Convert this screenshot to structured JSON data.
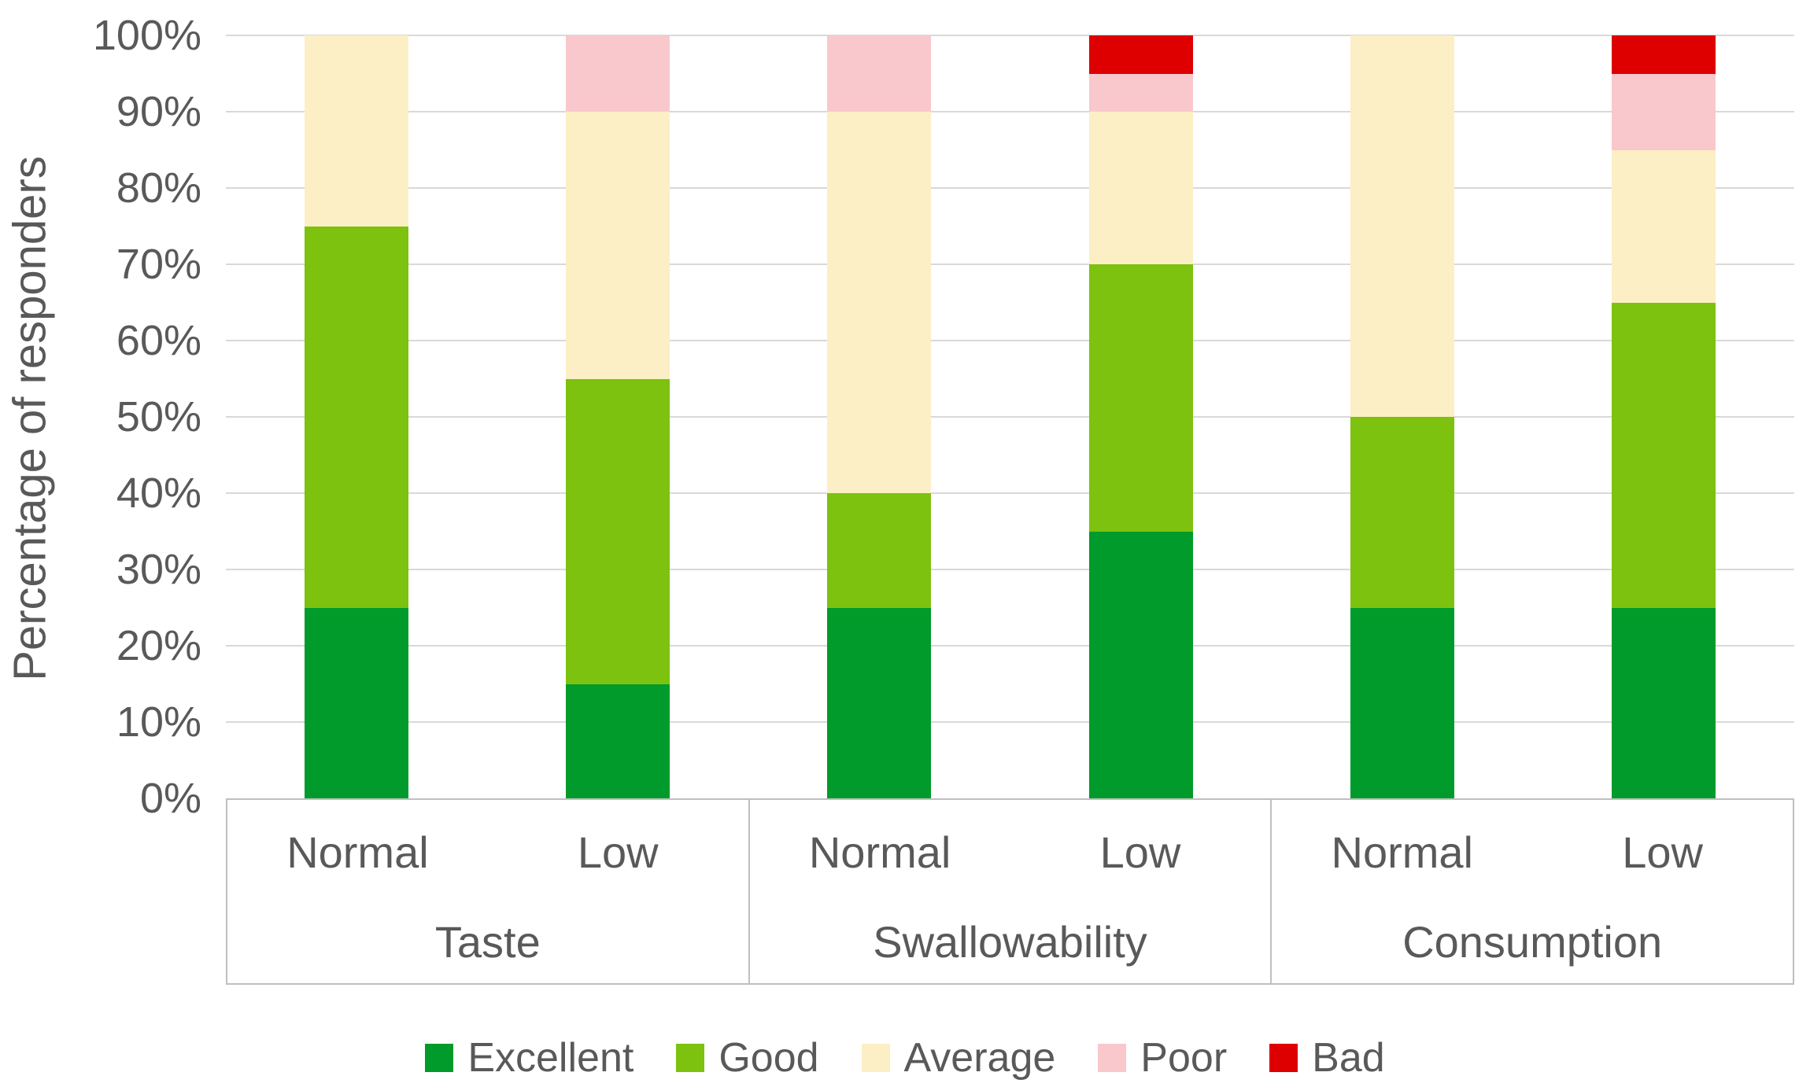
{
  "chart_data": {
    "type": "bar",
    "stacked": true,
    "percent_stacked": true,
    "title": "",
    "xlabel": "",
    "ylabel": "Percentage of responders",
    "ylim": [
      0,
      100
    ],
    "ytick_step": 10,
    "yticks": [
      "0%",
      "10%",
      "20%",
      "30%",
      "40%",
      "50%",
      "60%",
      "70%",
      "80%",
      "90%",
      "100%"
    ],
    "grid": "horizontal",
    "legend_position": "bottom",
    "groups": [
      "Taste",
      "Swallowability",
      "Consumption"
    ],
    "categories": [
      "Normal",
      "Low",
      "Normal",
      "Low",
      "Normal",
      "Low"
    ],
    "series": [
      {
        "name": "Excellent",
        "color": "#009B2A",
        "values": [
          25,
          15,
          25,
          35,
          25,
          25
        ]
      },
      {
        "name": "Good",
        "color": "#7CC20F",
        "values": [
          50,
          40,
          15,
          35,
          25,
          40
        ]
      },
      {
        "name": "Average",
        "color": "#FCEFC5",
        "values": [
          25,
          35,
          50,
          20,
          50,
          20
        ]
      },
      {
        "name": "Poor",
        "color": "#F9C8CC",
        "values": [
          0,
          10,
          10,
          5,
          0,
          10
        ]
      },
      {
        "name": "Bad",
        "color": "#DE0000",
        "values": [
          0,
          0,
          0,
          5,
          0,
          5
        ]
      }
    ]
  },
  "colors": {
    "gridline": "#D9D9D9",
    "axis_border": "#BFBFBF",
    "text": "#595959",
    "background": "#FFFFFF"
  }
}
